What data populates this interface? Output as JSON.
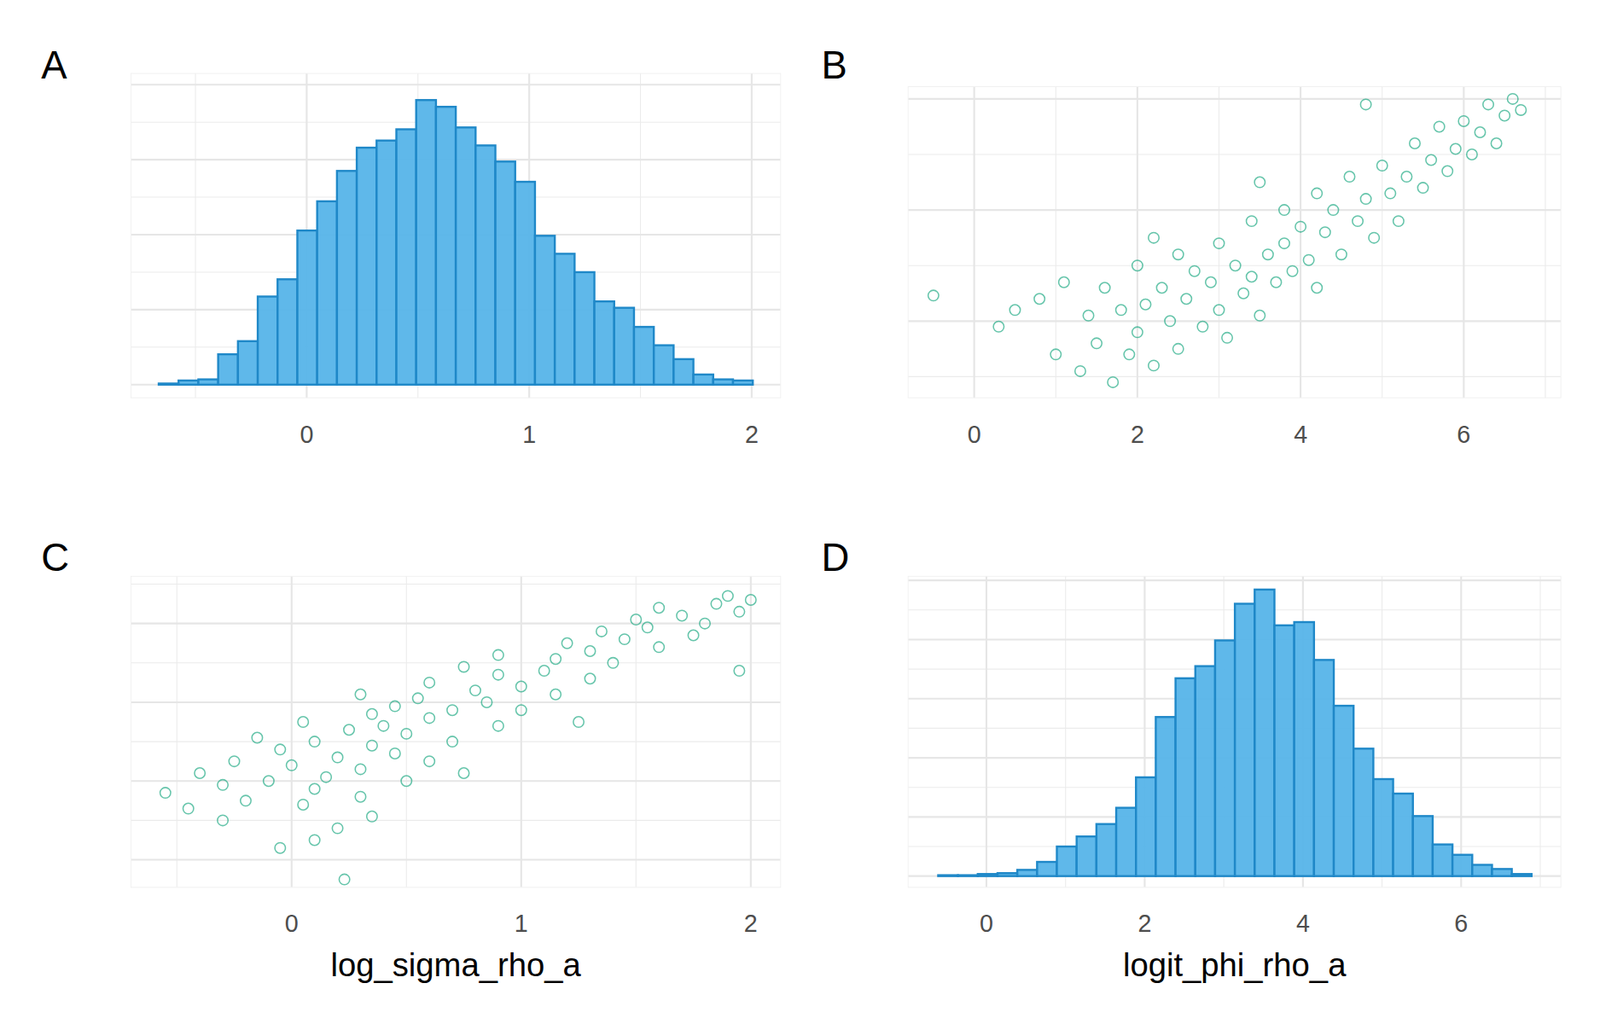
{
  "chart_data": [
    {
      "type": "histogram",
      "title": "A",
      "bins": [
        -0.665,
        -0.576,
        -0.487,
        -0.398,
        -0.309,
        -0.22,
        -0.131,
        -0.042,
        0.047,
        0.136,
        0.225,
        0.314,
        0.403,
        0.492,
        0.581,
        0.67,
        0.759,
        0.848,
        0.937,
        1.026,
        1.115,
        1.204,
        1.293,
        1.382,
        1.471,
        1.56,
        1.649,
        1.738,
        1.827,
        1.916,
        2.005
      ],
      "values": [
        3,
        11,
        14,
        81,
        116,
        235,
        281,
        411,
        489,
        570,
        632,
        651,
        681,
        759,
        741,
        686,
        638,
        595,
        541,
        397,
        349,
        300,
        222,
        205,
        154,
        105,
        68,
        27,
        14,
        11
      ],
      "color": "#56b4e9",
      "xlim": [
        -0.79,
        2.13
      ],
      "ylim": [
        -35,
        830
      ],
      "xticks": [
        0,
        1,
        2
      ],
      "yticks": [
        0,
        200,
        400,
        600,
        800
      ],
      "grid": true,
      "tick_labels": "x"
    },
    {
      "type": "scatter",
      "title": "B",
      "x": [
        -0.5,
        0.3,
        0.5,
        0.8,
        1.0,
        1.1,
        1.3,
        1.4,
        1.5,
        1.6,
        1.7,
        1.8,
        1.9,
        2.0,
        2.0,
        2.1,
        2.2,
        2.3,
        2.4,
        2.5,
        2.5,
        2.6,
        2.7,
        2.8,
        2.9,
        3.0,
        3.0,
        3.1,
        3.2,
        3.3,
        3.4,
        3.4,
        3.5,
        3.6,
        3.7,
        3.8,
        3.8,
        3.9,
        4.0,
        4.1,
        4.2,
        4.2,
        4.3,
        4.4,
        4.5,
        4.6,
        4.7,
        4.8,
        4.9,
        5.0,
        5.1,
        5.2,
        5.3,
        5.4,
        5.5,
        5.6,
        5.7,
        5.8,
        5.9,
        6.0,
        6.1,
        6.2,
        6.3,
        6.4,
        6.5,
        6.6,
        6.7,
        4.8,
        3.5,
        2.2
      ],
      "values": [
        0.23,
        -0.05,
        0.1,
        0.2,
        -0.3,
        0.35,
        -0.45,
        0.05,
        -0.2,
        0.3,
        -0.55,
        0.1,
        -0.3,
        0.5,
        -0.1,
        0.15,
        -0.4,
        0.3,
        0.0,
        0.6,
        -0.25,
        0.2,
        0.45,
        -0.05,
        0.35,
        0.7,
        0.1,
        -0.15,
        0.5,
        0.25,
        0.9,
        0.4,
        0.05,
        0.6,
        0.35,
        1.0,
        0.7,
        0.45,
        0.85,
        0.55,
        1.15,
        0.3,
        0.8,
        1.0,
        0.6,
        1.3,
        0.9,
        1.1,
        0.75,
        1.4,
        1.15,
        0.9,
        1.3,
        1.6,
        1.2,
        1.45,
        1.75,
        1.35,
        1.55,
        1.8,
        1.5,
        1.7,
        1.95,
        1.6,
        1.85,
        2.0,
        1.9,
        1.95,
        1.25,
        0.75
      ],
      "color": "#009e73",
      "marker": "open-circle",
      "xlim": [
        -0.81,
        7.19
      ],
      "ylim": [
        -0.69,
        2.11
      ],
      "xticks": [
        0,
        2,
        4,
        6
      ],
      "yticks": [
        0,
        1,
        2
      ],
      "grid": true,
      "tick_labels": "x"
    },
    {
      "type": "scatter",
      "title": "C",
      "x_label": "log_sigma_rho_a",
      "x": [
        0.23,
        -0.05,
        0.1,
        0.2,
        -0.3,
        0.35,
        -0.45,
        0.05,
        -0.2,
        0.3,
        -0.55,
        0.1,
        -0.3,
        0.5,
        -0.1,
        0.15,
        -0.4,
        0.3,
        0.0,
        0.6,
        -0.25,
        0.2,
        0.45,
        -0.05,
        0.35,
        0.7,
        0.1,
        -0.15,
        0.5,
        0.25,
        0.9,
        0.4,
        0.05,
        0.6,
        0.35,
        1.0,
        0.7,
        0.45,
        0.85,
        0.55,
        1.15,
        0.3,
        0.8,
        1.0,
        0.6,
        1.3,
        0.9,
        1.1,
        0.75,
        1.4,
        1.15,
        0.9,
        1.3,
        1.6,
        1.2,
        1.45,
        1.75,
        1.35,
        1.55,
        1.8,
        1.5,
        1.7,
        1.95,
        1.6,
        1.85,
        2.0,
        1.9,
        1.95,
        1.25,
        0.75
      ],
      "values": [
        -0.5,
        0.3,
        0.5,
        0.8,
        1.0,
        1.1,
        1.3,
        1.4,
        1.5,
        1.6,
        1.7,
        1.8,
        1.9,
        2.0,
        2.0,
        2.1,
        2.2,
        2.3,
        2.4,
        2.5,
        2.5,
        2.6,
        2.7,
        2.8,
        2.9,
        3.0,
        3.0,
        3.1,
        3.2,
        3.3,
        3.4,
        3.4,
        3.5,
        3.6,
        3.7,
        3.8,
        3.8,
        3.9,
        4.0,
        4.1,
        4.2,
        4.2,
        4.3,
        4.4,
        4.5,
        4.6,
        4.7,
        4.8,
        4.9,
        5.0,
        5.1,
        5.2,
        5.3,
        5.4,
        5.5,
        5.6,
        5.7,
        5.8,
        5.9,
        6.0,
        6.1,
        6.2,
        6.3,
        6.4,
        6.5,
        6.6,
        6.7,
        4.8,
        3.5,
        2.2
      ],
      "color": "#009e73",
      "marker": "open-circle",
      "xlim": [
        -0.7,
        2.13
      ],
      "ylim": [
        -0.7,
        7.2
      ],
      "xticks": [
        0,
        1,
        2
      ],
      "yticks": [
        0,
        2,
        4,
        6
      ],
      "grid": true,
      "tick_labels": "x"
    },
    {
      "type": "histogram",
      "title": "D",
      "x_label": "logit_phi_rho_a",
      "bins": [
        -0.61,
        -0.36,
        -0.11,
        0.14,
        0.39,
        0.64,
        0.89,
        1.14,
        1.39,
        1.64,
        1.89,
        2.14,
        2.39,
        2.64,
        2.89,
        3.14,
        3.39,
        3.64,
        3.89,
        4.14,
        4.39,
        4.64,
        4.89,
        5.14,
        5.39,
        5.64,
        5.89,
        6.14,
        6.39,
        6.64,
        6.89
      ],
      "values": [
        3,
        3,
        7,
        10,
        21,
        48,
        100,
        134,
        176,
        231,
        334,
        538,
        669,
        710,
        797,
        921,
        969,
        848,
        859,
        731,
        576,
        431,
        328,
        279,
        203,
        107,
        72,
        38,
        24,
        7
      ],
      "color": "#56b4e9",
      "xlim": [
        -0.99,
        7.26
      ],
      "ylim": [
        -38,
        1014
      ],
      "xticks": [
        0,
        2,
        4,
        6
      ],
      "yticks": [
        0,
        200,
        400,
        600,
        800,
        1000
      ],
      "grid": true,
      "tick_labels": "x"
    }
  ]
}
